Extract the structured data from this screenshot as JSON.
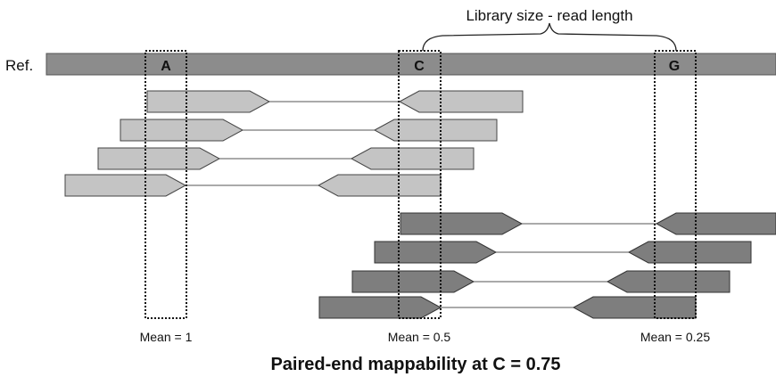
{
  "brace_label": "Library size - read length",
  "reference": {
    "label": "Ref."
  },
  "positions": [
    {
      "letter": "A",
      "mean_label": "Mean = 1"
    },
    {
      "letter": "C",
      "mean_label": "Mean = 0.5"
    },
    {
      "letter": "G",
      "mean_label": "Mean = 0.25"
    }
  ],
  "caption": "Paired-end mappability at C = 0.75",
  "colors": {
    "reference_bar": "#8c8c8c",
    "light_reads": "#c4c4c4",
    "dark_reads": "#7e7e7e",
    "outline": "#444444",
    "background": "#ffffff"
  }
}
